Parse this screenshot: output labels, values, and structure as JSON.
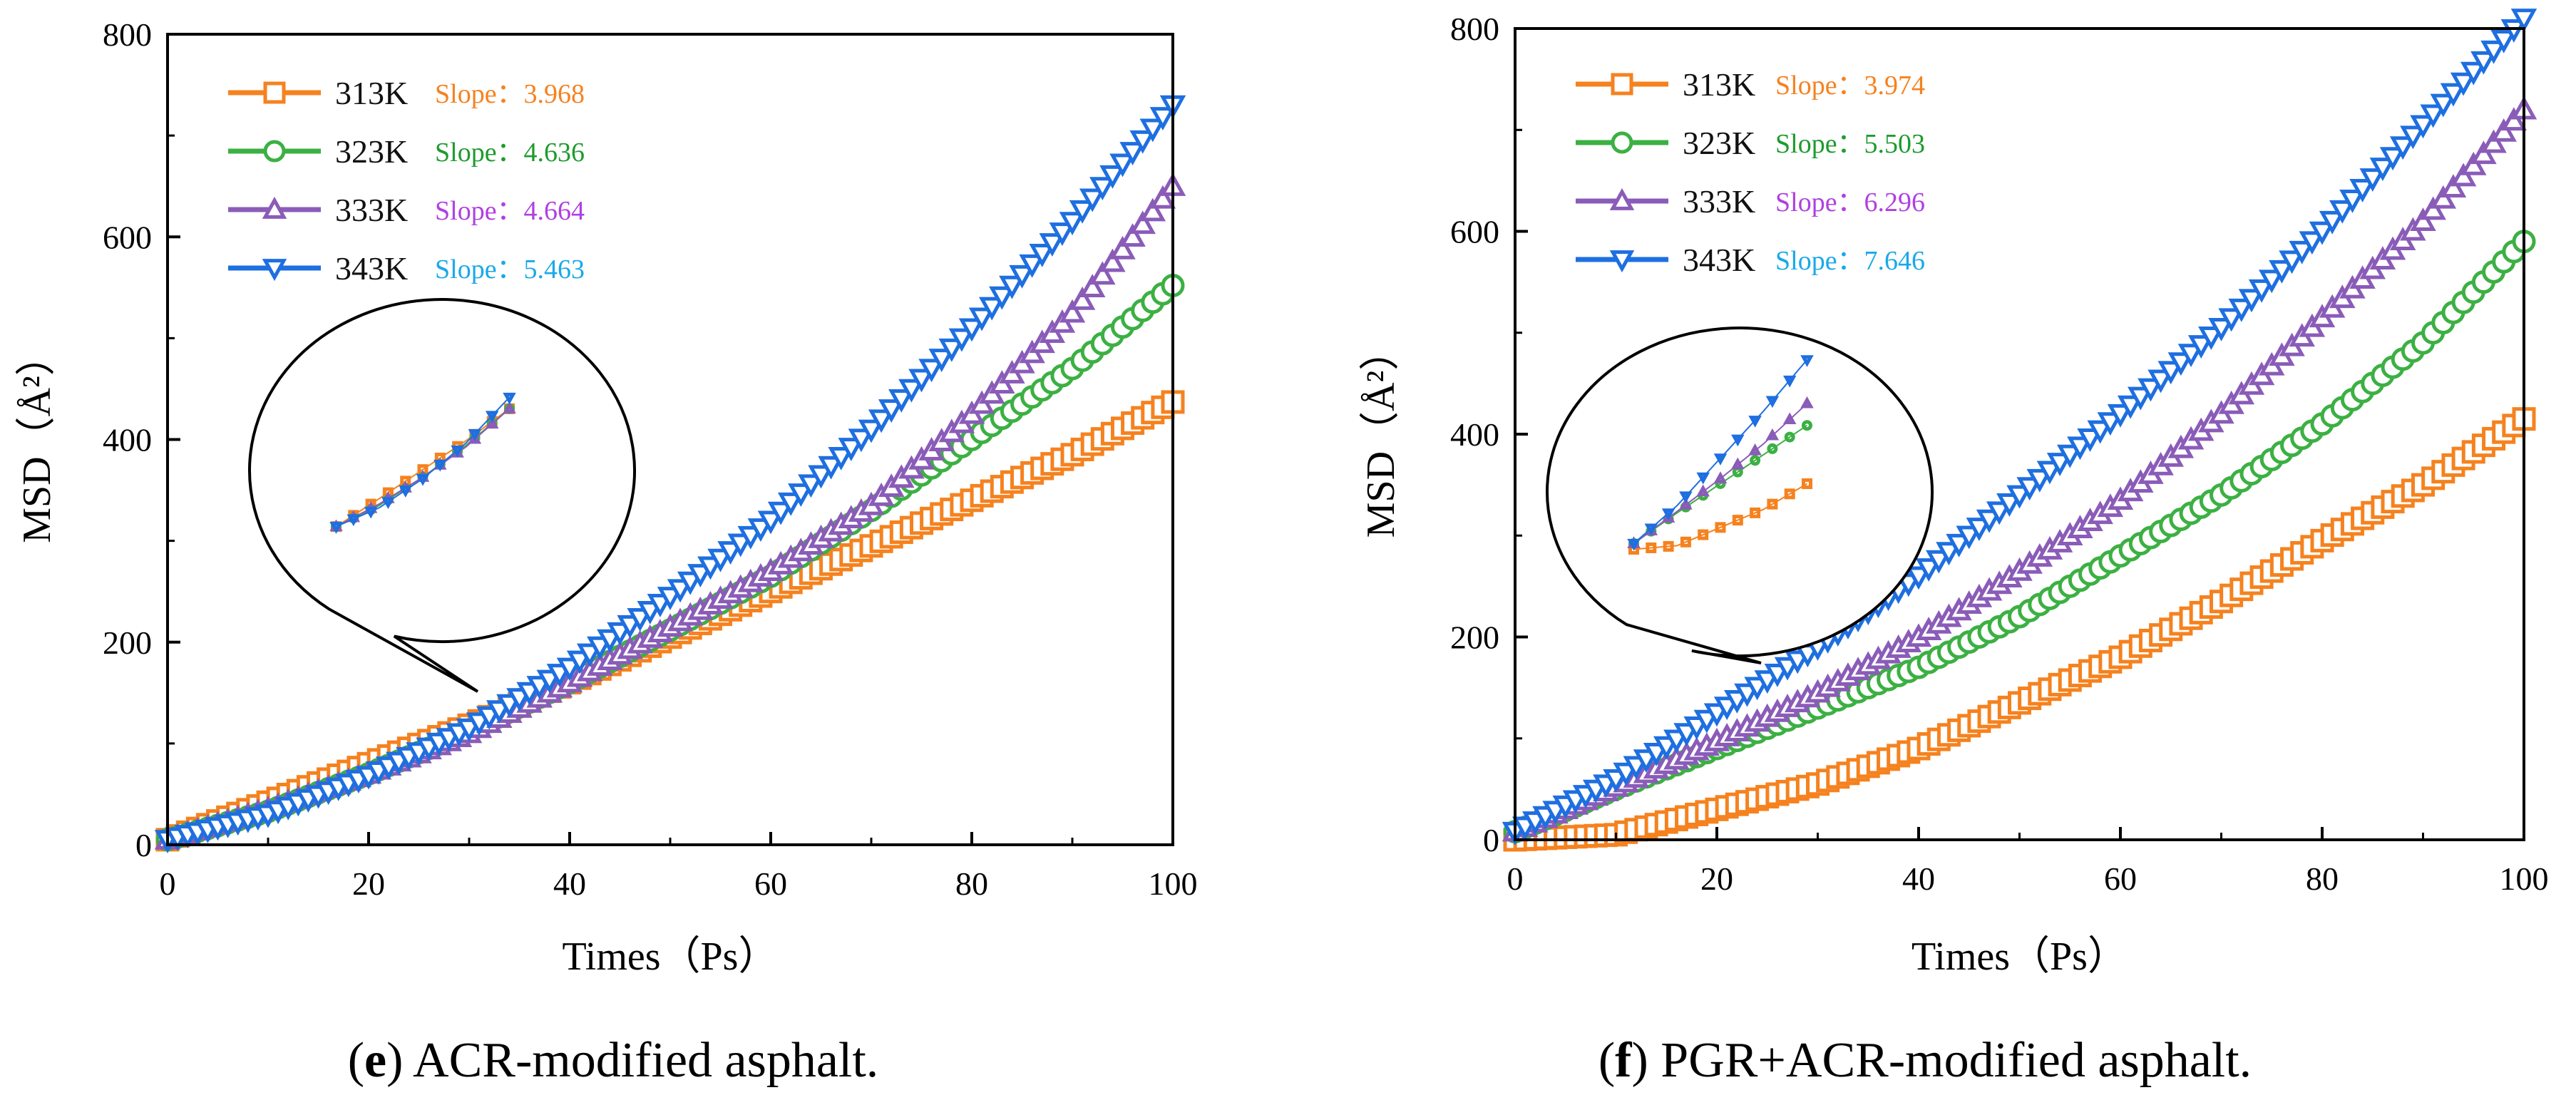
{
  "figure_captions": [
    {
      "letter": "e",
      "text": ") ACR-modified asphalt.",
      "open": "("
    },
    {
      "letter": "f",
      "text": ") PGR+ACR-modified asphalt.",
      "open": "("
    }
  ],
  "series_colors": {
    "313K": "#f5821f",
    "323K": "#3cb043",
    "333K": "#8a5cb8",
    "343K": "#1e6fe0"
  },
  "slope_colors": {
    "313K": "#f5821f",
    "323K": "#1e9b2e",
    "333K": "#b040e0",
    "343K": "#19a9e8"
  },
  "chart_data": [
    {
      "type": "line",
      "title": "",
      "caption": "(e) ACR-modified asphalt.",
      "xlabel": "Times（Ps）",
      "ylabel": "MSD（Å²）",
      "xlim": [
        0,
        100
      ],
      "ylim": [
        0,
        800
      ],
      "xticks": [
        "0",
        "20",
        "40",
        "60",
        "80",
        "100"
      ],
      "yticks": [
        "0",
        "200",
        "400",
        "600",
        "800"
      ],
      "x": [
        0,
        10,
        20,
        30,
        40,
        50,
        60,
        70,
        80,
        90,
        100
      ],
      "series": [
        {
          "name": "313K",
          "marker": "square",
          "slope_label": "Slope：",
          "slope": "3.968",
          "values": [
            5,
            42,
            80,
            118,
            160,
            205,
            250,
            295,
            340,
            385,
            437
          ]
        },
        {
          "name": "323K",
          "marker": "circle",
          "slope_label": "Slope：",
          "slope": "4.636",
          "values": [
            5,
            33,
            70,
            112,
            160,
            212,
            265,
            330,
            400,
            470,
            552
          ]
        },
        {
          "name": "333K",
          "marker": "triangle-up",
          "slope_label": "Slope：",
          "slope": "4.664",
          "values": [
            5,
            35,
            70,
            110,
            160,
            215,
            270,
            335,
            425,
            525,
            650
          ]
        },
        {
          "name": "343K",
          "marker": "triangle-down",
          "slope_label": "Slope：",
          "slope": "5.463",
          "values": [
            5,
            30,
            68,
            115,
            175,
            245,
            320,
            410,
            510,
            615,
            730
          ]
        }
      ],
      "legend_position": "top-left"
    },
    {
      "type": "line",
      "title": "",
      "caption": "(f) PGR+ACR-modified asphalt.",
      "xlabel": "Times（Ps）",
      "ylabel": "MSD（Å²）",
      "xlim": [
        0,
        100
      ],
      "ylim": [
        0,
        800
      ],
      "xticks": [
        "0",
        "20",
        "40",
        "60",
        "80",
        "100"
      ],
      "yticks": [
        "0",
        "200",
        "400",
        "600",
        "800"
      ],
      "x": [
        0,
        10,
        20,
        30,
        40,
        50,
        60,
        70,
        80,
        90,
        100
      ],
      "series": [
        {
          "name": "313K",
          "marker": "square",
          "slope_label": "Slope：",
          "slope": "3.974",
          "values": [
            0,
            5,
            30,
            55,
            90,
            135,
            180,
            235,
            295,
            350,
            415
          ]
        },
        {
          "name": "323K",
          "marker": "circle",
          "slope_label": "Slope：",
          "slope": "5.503",
          "values": [
            8,
            50,
            90,
            130,
            170,
            220,
            280,
            340,
            410,
            490,
            590
          ]
        },
        {
          "name": "333K",
          "marker": "triangle-up",
          "slope_label": "Slope：",
          "slope": "6.296",
          "values": [
            8,
            52,
            97,
            145,
            200,
            265,
            335,
            420,
            515,
            610,
            720
          ]
        },
        {
          "name": "343K",
          "marker": "triangle-down",
          "slope_label": "Slope：",
          "slope": "7.646",
          "values": [
            8,
            60,
            125,
            190,
            260,
            340,
            420,
            505,
            600,
            705,
            810
          ]
        }
      ],
      "legend_position": "top-left"
    }
  ]
}
